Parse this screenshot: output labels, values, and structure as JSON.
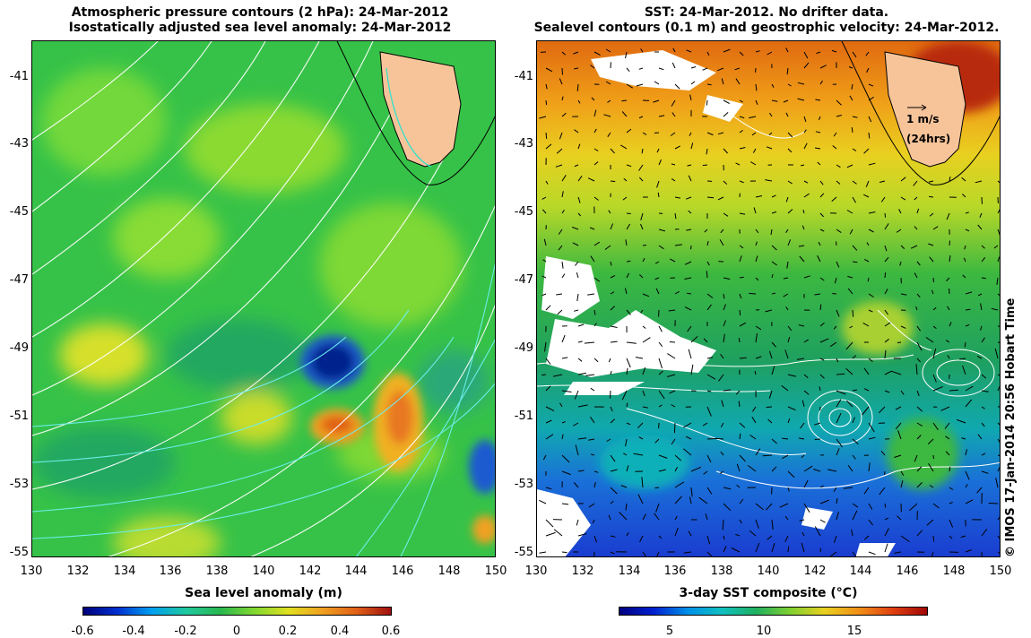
{
  "left_panel": {
    "title_line1": "Atmospheric pressure contours (2 hPa): 24-Mar-2012",
    "title_line2": "Isostatically adjusted sea level anomaly: 24-Mar-2012",
    "xlabel": "Sea level anomaly (m)",
    "colorbar_ticks": [
      "-0.6",
      "-0.4",
      "-0.2",
      "0",
      "0.2",
      "0.4",
      "0.6"
    ]
  },
  "right_panel": {
    "title_line1": "SST: 24-Mar-2012. No drifter data.",
    "title_line2": "Sealevel contours (0.1 m) and geostrophic velocity: 24-Mar-2012.",
    "xlabel": "3-day SST composite (°C)",
    "colorbar_ticks": [
      "5",
      "10",
      "15"
    ],
    "scale_arrow_label": "1 m/s",
    "scale_arrow_sublabel": "(24hrs)"
  },
  "axes": {
    "x_ticks": [
      "130",
      "132",
      "134",
      "136",
      "138",
      "140",
      "142",
      "144",
      "146",
      "148",
      "150"
    ],
    "y_ticks": [
      "-41",
      "-43",
      "-45",
      "-47",
      "-49",
      "-51",
      "-53",
      "-55"
    ]
  },
  "credit": "© IMOS 17-Jan-2014 20:56 Hobart Time",
  "colors": {
    "land": "#f7c49a",
    "sla_neg": "#00208c",
    "sla_pos": "#e0401a",
    "sst_warm": "#c0320a",
    "sst_cold": "#1a3cd0"
  }
}
